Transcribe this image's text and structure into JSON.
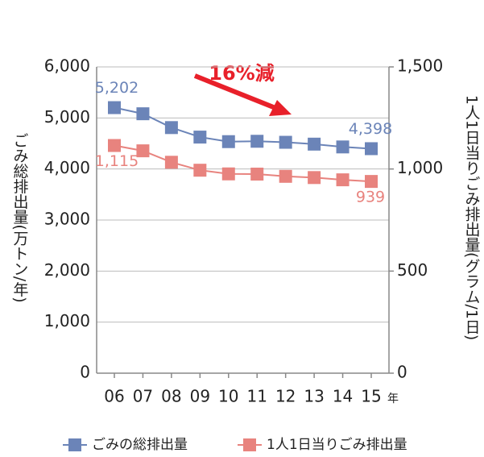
{
  "chart_data": {
    "type": "line",
    "categories": [
      "06",
      "07",
      "08",
      "09",
      "10",
      "11",
      "12",
      "13",
      "14",
      "15"
    ],
    "x_unit": "年",
    "ylabel": "ごみ総排出量(万トン/年)",
    "y2label": "1人1日当りごみ排出量(グラム/1日)",
    "annotation": "16%減",
    "ylim": [
      0,
      6000
    ],
    "yticks": [
      0,
      {
        "value": 1000,
        "label": "1,000"
      },
      {
        "value": 2000,
        "label": "2,000"
      },
      {
        "value": 3000,
        "label": "3,000"
      },
      {
        "value": 4000,
        "label": "4,000"
      },
      {
        "value": 5000,
        "label": "5,000"
      },
      {
        "value": 6000,
        "label": "6,000"
      }
    ],
    "y2lim": [
      0,
      1500
    ],
    "y2ticks": [
      0,
      500,
      {
        "value": 1000,
        "label": "1,000"
      },
      {
        "value": 1500,
        "label": "1,500"
      }
    ],
    "grid": true,
    "legend": "bottom",
    "series": [
      {
        "name": "ごみの総排出量",
        "color": "#6b84b8",
        "axis": "y",
        "values": [
          5202,
          5082,
          4811,
          4625,
          4536,
          4543,
          4523,
          4487,
          4432,
          4398
        ],
        "value_labels": [
          "5,202",
          null,
          null,
          null,
          null,
          null,
          null,
          null,
          null,
          "4,398"
        ]
      },
      {
        "name": "1人1日当りごみ排出量",
        "color": "#e8837e",
        "axis": "y2",
        "values": [
          1115,
          1089,
          1033,
          994,
          976,
          975,
          964,
          958,
          947,
          939
        ],
        "value_labels": [
          "1,115",
          null,
          null,
          null,
          null,
          null,
          null,
          null,
          null,
          "939"
        ]
      }
    ]
  }
}
